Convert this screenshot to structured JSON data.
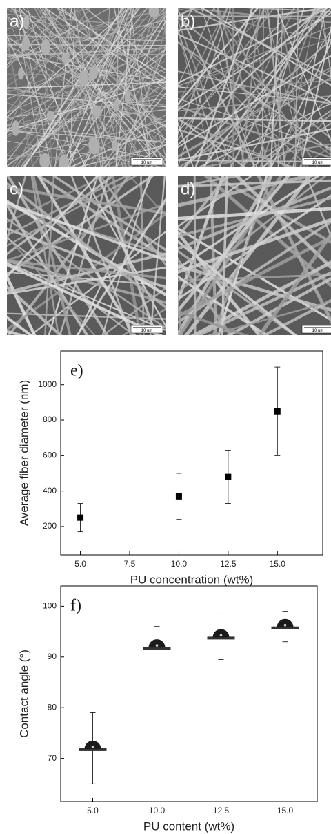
{
  "images": [
    {
      "label": "a)",
      "scale_bar": "10 um"
    },
    {
      "label": "b)",
      "scale_bar": "10 um"
    },
    {
      "label": "c)",
      "scale_bar": "10 um"
    },
    {
      "label": "d)",
      "scale_bar": "10 um"
    }
  ],
  "chart_data": [
    {
      "type": "scatter",
      "annotation": "e)",
      "x_label": "PU concentration (wt%)",
      "y_label": "Average fiber diameter (nm)",
      "x": [
        5,
        10,
        12.5,
        15
      ],
      "values": [
        250,
        370,
        480,
        850
      ],
      "errors": [
        80,
        130,
        150,
        250
      ],
      "color": "#000000",
      "xlim": [
        4,
        17.3
      ],
      "xticks": [
        {
          "value": 5,
          "label": "5.0"
        },
        {
          "value": 7.5,
          "label": "7.5"
        },
        {
          "value": 10,
          "label": "10.0"
        },
        {
          "value": 12.5,
          "label": "12.5"
        },
        {
          "value": 15,
          "label": "15.0"
        }
      ],
      "ylim": [
        40,
        1190
      ],
      "yticks": [
        200,
        400,
        600,
        800,
        1000
      ]
    },
    {
      "type": "droplet",
      "annotation": "f)",
      "x_label": "PU content (wt%)",
      "y_label": "Contact angle (°)",
      "categories": [
        "5.0",
        "10.0",
        "12.5",
        "15.0"
      ],
      "values": [
        72,
        92,
        94,
        96
      ],
      "errors": [
        7,
        4,
        4.5,
        3
      ],
      "color": "#1a1a1a",
      "ylim": [
        61.5,
        104
      ],
      "yticks": [
        70,
        80,
        90,
        100
      ]
    }
  ]
}
